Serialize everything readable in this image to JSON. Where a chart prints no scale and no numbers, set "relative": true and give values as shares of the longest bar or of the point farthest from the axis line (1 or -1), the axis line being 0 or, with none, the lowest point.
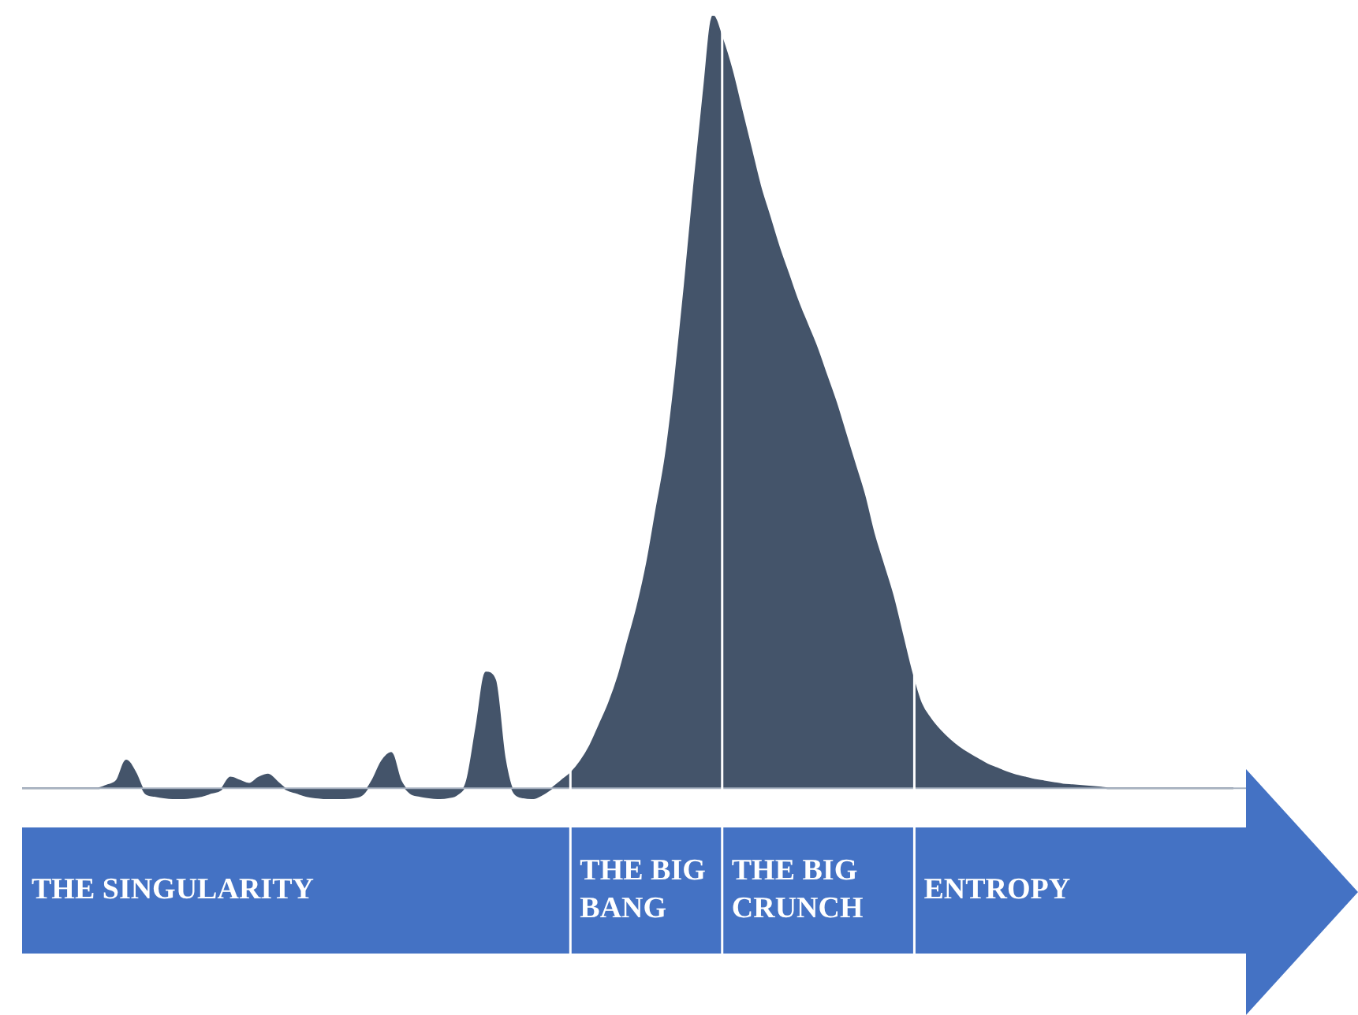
{
  "chart_data": [
    {
      "type": "area",
      "relative": true,
      "categories": [
        null,
        null,
        null,
        null,
        null,
        null,
        null,
        null,
        null,
        null,
        null,
        null,
        null,
        null,
        null,
        null,
        null,
        null,
        null,
        null,
        null,
        null,
        null,
        null,
        null,
        null,
        null,
        null,
        null,
        null,
        null,
        null,
        null,
        null,
        null,
        null,
        null,
        null,
        null,
        null,
        null,
        null,
        null,
        null,
        null,
        null,
        null,
        null,
        null,
        null,
        null,
        null,
        null,
        null,
        null,
        null,
        null,
        null,
        null,
        null,
        null,
        null,
        null,
        null,
        null,
        null,
        null,
        null,
        null,
        null,
        null,
        null,
        null,
        null,
        null,
        null,
        null,
        null,
        null,
        null,
        null,
        null,
        null,
        null,
        null,
        null,
        null,
        null,
        null,
        null,
        null,
        null,
        null,
        null,
        null,
        null,
        null,
        null,
        null,
        null,
        null,
        null,
        null,
        null,
        null,
        null,
        null,
        null,
        null,
        null,
        null,
        null,
        null,
        null,
        null,
        null,
        null,
        null,
        null,
        null,
        null,
        null,
        null,
        null,
        null,
        null,
        null,
        null,
        null
      ],
      "series": [
        {
          "color": "#44546a",
          "values": [
            0,
            0,
            0,
            0,
            0,
            0,
            0,
            0,
            0,
            0.004,
            0.01,
            0.036,
            0.02,
            -0.006,
            -0.01,
            -0.012,
            -0.013,
            -0.013,
            -0.012,
            -0.01,
            -0.006,
            -0.002,
            0.014,
            0.01,
            0.006,
            0.014,
            0.018,
            0.008,
            -0.002,
            -0.006,
            -0.01,
            -0.012,
            -0.013,
            -0.014,
            -0.013,
            -0.012,
            -0.008,
            0.01,
            0.035,
            0.046,
            0.01,
            -0.006,
            -0.01,
            -0.012,
            -0.013,
            -0.012,
            -0.008,
            0.01,
            0.08,
            0.15,
            0.14,
            0.04,
            -0.006,
            -0.012,
            -0.013,
            -0.008,
            0,
            0.01,
            0.02,
            0.035,
            0.055,
            0.082,
            0.11,
            0.145,
            0.19,
            0.235,
            0.29,
            0.36,
            0.43,
            0.53,
            0.65,
            0.78,
            0.9,
            1,
            0.97,
            0.93,
            0.88,
            0.83,
            0.78,
            0.74,
            0.7,
            0.665,
            0.63,
            0.6,
            0.57,
            0.535,
            0.5,
            0.46,
            0.42,
            0.38,
            0.33,
            0.29,
            0.25,
            0.2,
            0.15,
            0.11,
            0.09,
            0.075,
            0.063,
            0.053,
            0.045,
            0.038,
            0.031,
            0.026,
            0.021,
            0.017,
            0.014,
            0.011,
            0.009,
            0.007,
            0.005,
            0.004,
            0.003,
            0.002,
            0.001,
            0,
            0,
            0,
            0,
            0,
            0,
            0,
            0,
            0,
            0,
            0,
            0,
            0,
            0
          ]
        }
      ]
    },
    {
      "type": "bar",
      "orientation": "horizontal",
      "stacked": true,
      "relative": true,
      "categories": [
        null
      ],
      "series": [
        {
          "name": "THE SINGULARITY",
          "color": "#4472c4",
          "values": [
            0.448
          ]
        },
        {
          "name": "THE BIG BANG",
          "color": "#4472c4",
          "values": [
            0.124
          ]
        },
        {
          "name": "THE BIG CRUNCH",
          "color": "#4472c4",
          "values": [
            0.157
          ]
        },
        {
          "name": "ENTROPY",
          "color": "#4472c4",
          "values": [
            0.271
          ]
        }
      ]
    }
  ]
}
